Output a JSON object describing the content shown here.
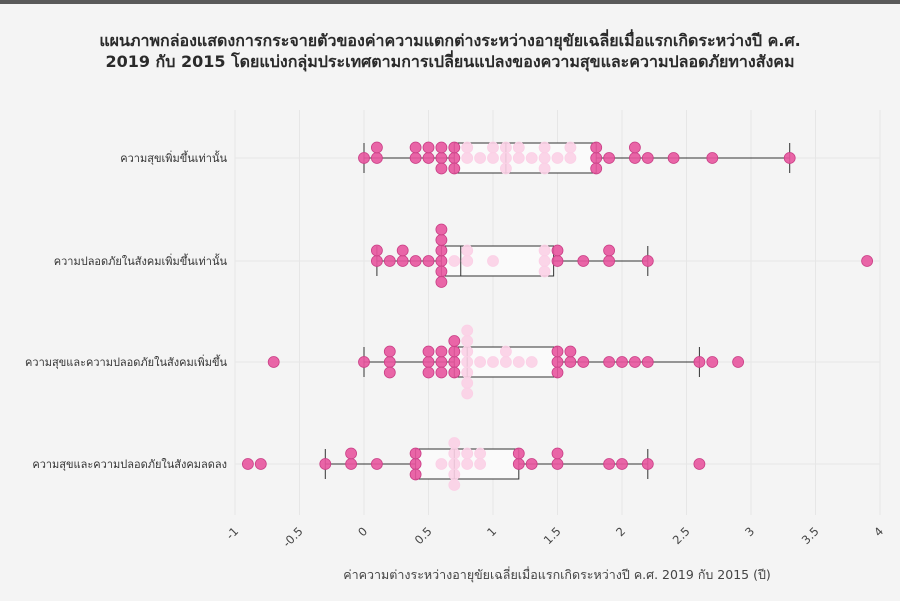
{
  "title": {
    "line1": "แผนภาพกล่องแสดงการกระจายตัวของค่าความแตกต่างระหว่างอายุขัยเฉลี่ยเมื่อแรกเกิดระหว่างปี ค.ศ.",
    "line2": "2019 กับ 2015 โดยแบ่งกลุ่มประเทศตามการเปลี่ยนแปลงของความสุขและความปลอดภัยทางสังคม"
  },
  "colors": {
    "background": "#f4f4f4",
    "point": "#e8559e",
    "point_edge": "#c93f86",
    "point_inside_box": "#fbd0e6",
    "box_fill": "#fafafa",
    "box_edge": "#333333",
    "grid": "#e6e6e6"
  },
  "chart_data": {
    "type": "box",
    "orientation": "horizontal",
    "title": "แผนภาพกล่องแสดงการกระจายตัวของค่าความแตกต่างระหว่างอายุขัยเฉลี่ยเมื่อแรกเกิดระหว่างปี ค.ศ. 2019 กับ 2015 โดยแบ่งกลุ่มประเทศตามการเปลี่ยนแปลงของความสุขและความปลอดภัยทางสังคม",
    "xlabel": "ค่าความต่างระหว่างอายุขัยเฉลี่ยเมื่อแรกเกิดระหว่างปี ค.ศ. 2019 กับ 2015 (ปี)",
    "ylabel": "",
    "xlim": [
      -1,
      4
    ],
    "xticks": [
      "-1",
      "-0.5",
      "0",
      "0.5",
      "1",
      "1.5",
      "2",
      "2.5",
      "3",
      "3.5",
      "4"
    ],
    "grid": true,
    "categories": [
      "ความสุขเพิ่มขึ้นเท่านั้น",
      "ความปลอดภัยในสังคมเพิ่มขึ้นเท่านั้น",
      "ความสุขและความปลอดภัยในสังคมเพิ่มขึ้น",
      "ความสุขและความปลอดภัยในสังคมลดลง"
    ],
    "boxes": [
      {
        "whisker_low": 0.0,
        "q1": 0.7,
        "median": 1.1,
        "q3": 1.8,
        "whisker_high": 3.3
      },
      {
        "whisker_low": 0.1,
        "q1": 0.6,
        "median": 0.75,
        "q3": 1.47,
        "whisker_high": 2.2
      },
      {
        "whisker_low": 0.0,
        "q1": 0.7,
        "median": 0.8,
        "q3": 1.5,
        "whisker_high": 2.6
      },
      {
        "whisker_low": -0.3,
        "q1": 0.4,
        "median": 0.7,
        "q3": 1.2,
        "whisker_high": 2.2
      }
    ],
    "points": [
      [
        0.0,
        0.1,
        0.1,
        0.4,
        0.4,
        0.5,
        0.5,
        0.6,
        0.6,
        0.6,
        0.7,
        0.7,
        0.7,
        0.8,
        0.8,
        0.9,
        1.0,
        1.0,
        1.1,
        1.1,
        1.1,
        1.2,
        1.2,
        1.3,
        1.4,
        1.4,
        1.4,
        1.5,
        1.6,
        1.6,
        1.8,
        1.8,
        1.8,
        1.9,
        2.1,
        2.1,
        2.2,
        2.4,
        2.7,
        3.3
      ],
      [
        0.1,
        0.1,
        0.2,
        0.3,
        0.3,
        0.4,
        0.5,
        0.6,
        0.6,
        0.6,
        0.6,
        0.6,
        0.6,
        0.7,
        0.8,
        0.8,
        1.0,
        1.4,
        1.4,
        1.4,
        1.5,
        1.5,
        1.7,
        1.9,
        1.9,
        2.2,
        3.9
      ],
      [
        -0.7,
        0.0,
        0.2,
        0.2,
        0.2,
        0.5,
        0.5,
        0.5,
        0.6,
        0.6,
        0.6,
        0.7,
        0.7,
        0.7,
        0.7,
        0.8,
        0.8,
        0.8,
        0.8,
        0.8,
        0.8,
        0.8,
        0.9,
        1.0,
        1.1,
        1.1,
        1.2,
        1.3,
        1.5,
        1.5,
        1.5,
        1.6,
        1.6,
        1.7,
        1.9,
        2.0,
        2.1,
        2.2,
        2.6,
        2.7,
        2.9
      ],
      [
        -0.9,
        -0.8,
        -0.3,
        -0.1,
        -0.1,
        0.1,
        0.4,
        0.4,
        0.4,
        0.6,
        0.7,
        0.7,
        0.7,
        0.7,
        0.7,
        0.8,
        0.8,
        0.9,
        0.9,
        1.2,
        1.2,
        1.3,
        1.5,
        1.5,
        1.9,
        2.0,
        2.2,
        2.6
      ]
    ]
  }
}
